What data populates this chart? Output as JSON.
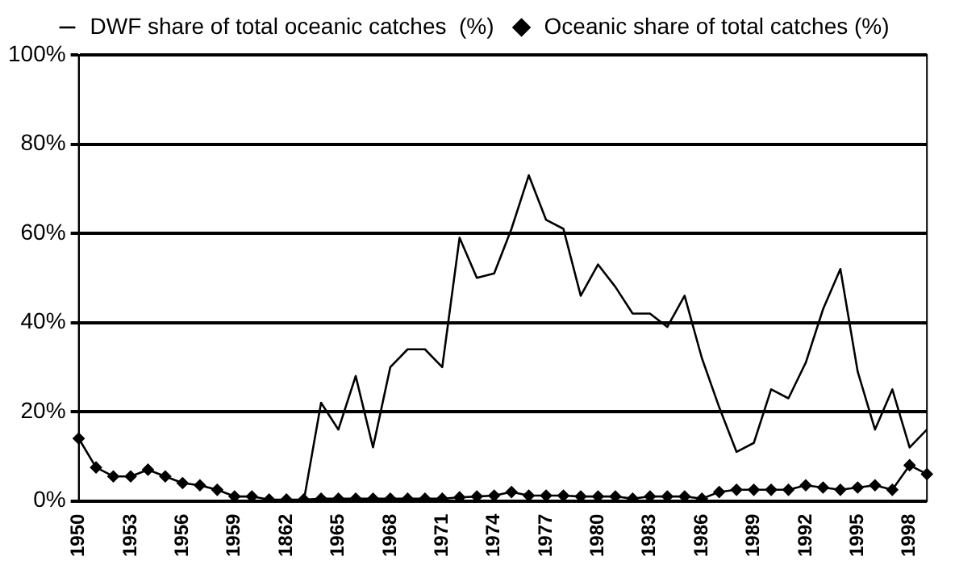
{
  "chart_data": {
    "type": "line",
    "categories": [
      "1950",
      null,
      null,
      "1953",
      null,
      null,
      "1956",
      null,
      null,
      "1959",
      null,
      null,
      "1862",
      null,
      null,
      "1965",
      null,
      null,
      "1968",
      null,
      null,
      "1971",
      null,
      null,
      "1974",
      null,
      null,
      "1977",
      null,
      null,
      "1980",
      null,
      null,
      "1983",
      null,
      null,
      "1986",
      null,
      null,
      "1989",
      null,
      null,
      "1992",
      null,
      null,
      "1995",
      null,
      null,
      "1998",
      null
    ],
    "series": [
      {
        "name": "DWF share of total oceanic catches  (%)",
        "color": "#000000",
        "marker": "none",
        "values": [
          null,
          null,
          null,
          null,
          null,
          null,
          null,
          null,
          null,
          null,
          null,
          null,
          null,
          0,
          22,
          16,
          28,
          12,
          30,
          34,
          34,
          30,
          59,
          50,
          51,
          61,
          73,
          63,
          61,
          46,
          53,
          48,
          42,
          42,
          39,
          46,
          32,
          21,
          11,
          13,
          25,
          23,
          31,
          43,
          52,
          29,
          16,
          25,
          12,
          16
        ]
      },
      {
        "name": "Oceanic share of total catches (%)",
        "color": "#000000",
        "marker": "diamond",
        "values": [
          14,
          7.5,
          5.5,
          5.5,
          7,
          5.5,
          4,
          3.5,
          2.5,
          1,
          1,
          0.3,
          0.3,
          0.3,
          0.5,
          0.5,
          0.5,
          0.5,
          0.5,
          0.5,
          0.5,
          0.5,
          0.8,
          1,
          1.2,
          2,
          1.2,
          1.2,
          1.2,
          1,
          1,
          1,
          0.5,
          1,
          1,
          1,
          0.5,
          2,
          2.5,
          2.5,
          2.5,
          2.5,
          3.5,
          3,
          2.5,
          3,
          3.5,
          2.5,
          8,
          6
        ]
      }
    ],
    "ylim": [
      0,
      100
    ],
    "yticks": [
      {
        "value": 0,
        "label": "0%"
      },
      {
        "value": 20,
        "label": "20%"
      },
      {
        "value": 40,
        "label": "40%"
      },
      {
        "value": 60,
        "label": "60%"
      },
      {
        "value": 80,
        "label": "80%"
      },
      {
        "value": 100,
        "label": "100%"
      }
    ],
    "grid": "y",
    "legend": "top",
    "line_style": "solid"
  }
}
